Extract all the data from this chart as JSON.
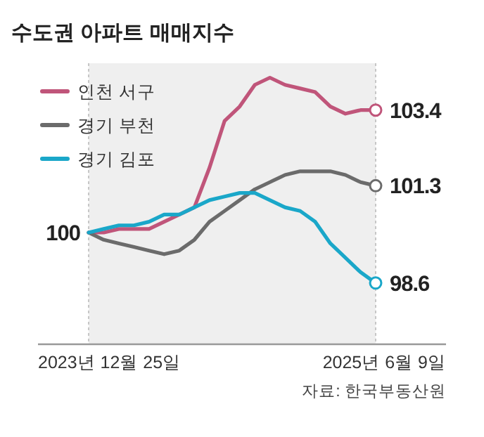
{
  "chart_data": {
    "type": "line",
    "title": "수도권 아파트 매매지수",
    "categories": [
      null,
      null,
      null,
      null,
      null,
      null,
      null,
      null,
      null,
      null,
      null,
      null,
      null,
      null,
      null,
      null,
      null,
      null,
      null,
      null
    ],
    "series": [
      {
        "name": "인천 서구",
        "color": "#c0557a",
        "values": [
          100,
          100.0,
          100.1,
          100.1,
          100.1,
          100.3,
          100.5,
          100.7,
          101.8,
          103.1,
          103.5,
          104.1,
          104.3,
          104.1,
          104.0,
          103.9,
          103.5,
          103.3,
          103.4,
          103.4
        ],
        "value_labels": [
          "100",
          null,
          null,
          null,
          null,
          null,
          null,
          null,
          null,
          null,
          null,
          null,
          null,
          null,
          null,
          null,
          null,
          null,
          null,
          "103.4"
        ]
      },
      {
        "name": "경기 부천",
        "color": "#6b6b6b",
        "values": [
          100,
          99.8,
          99.7,
          99.6,
          99.5,
          99.4,
          99.5,
          99.8,
          100.3,
          100.6,
          100.9,
          101.2,
          101.4,
          101.6,
          101.7,
          101.7,
          101.7,
          101.6,
          101.4,
          101.3
        ],
        "value_labels": [
          null,
          null,
          null,
          null,
          null,
          null,
          null,
          null,
          null,
          null,
          null,
          null,
          null,
          null,
          null,
          null,
          null,
          null,
          null,
          "101.3"
        ]
      },
      {
        "name": "경기 김포",
        "color": "#1aa7c9",
        "values": [
          100,
          100.1,
          100.2,
          100.2,
          100.3,
          100.5,
          100.5,
          100.7,
          100.9,
          101.0,
          101.1,
          101.1,
          100.9,
          100.7,
          100.6,
          100.3,
          99.7,
          99.3,
          98.9,
          98.6
        ],
        "value_labels": [
          null,
          null,
          null,
          null,
          null,
          null,
          null,
          null,
          null,
          null,
          null,
          null,
          null,
          null,
          null,
          null,
          null,
          null,
          null,
          "98.6"
        ]
      }
    ],
    "ylim": [
      96.9,
      104.7
    ],
    "legend": "top left",
    "annotations": [
      "2023년 12월 25일",
      "2025년 6월 9일",
      "자료: 한국부동산원"
    ]
  }
}
